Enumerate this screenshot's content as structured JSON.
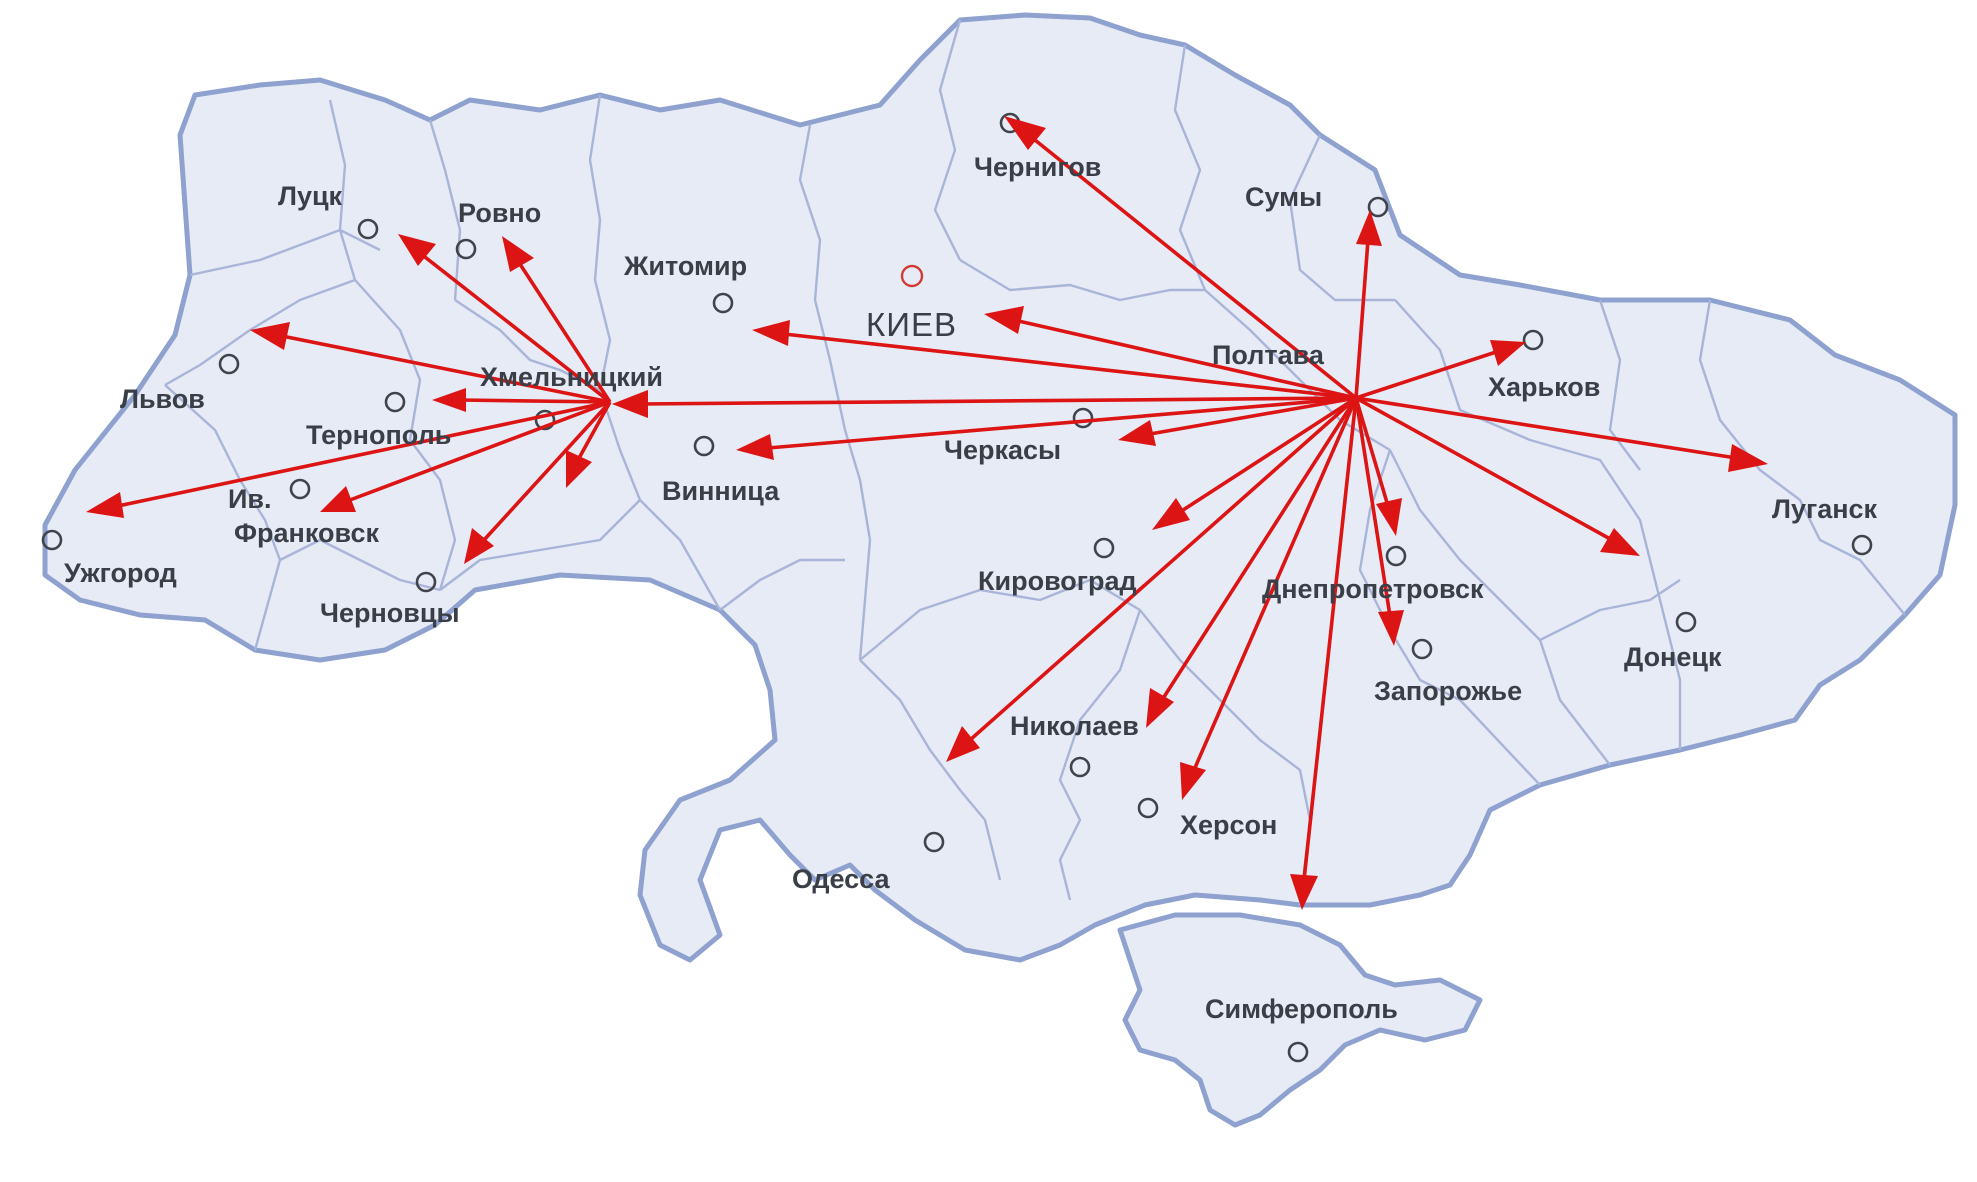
{
  "map": {
    "capital": {
      "name": "КИЕВ"
    },
    "cities": {
      "lutsk": "Луцк",
      "rovno": "Ровно",
      "zhitomir": "Житомир",
      "chernigov": "Чернигов",
      "sumy": "Сумы",
      "lvov": "Львов",
      "khmelnitsky": "Хмельницкий",
      "ternopol": "Тернополь",
      "iv": "Ив.",
      "frankovsk": "Франковск",
      "uzhgorod": "Ужгород",
      "chernovtsy": "Черновцы",
      "vinnitsa": "Винница",
      "cherkasy": "Черкасы",
      "poltava": "Полтава",
      "kharkov": "Харьков",
      "lugansk": "Луганск",
      "kirovograd": "Кировоград",
      "dnepropetrovsk": "Днепропетровск",
      "donetsk": "Донецк",
      "zaporozhye": "Запорожье",
      "nikolaev": "Николаев",
      "kherson": "Херсон",
      "odessa": "Одесса",
      "simferopol": "Симферополь"
    },
    "colors": {
      "land": "#e6ebf6",
      "border": "#8ea1cf",
      "arrow": "#dd1414",
      "label": "#3a3f47"
    }
  }
}
